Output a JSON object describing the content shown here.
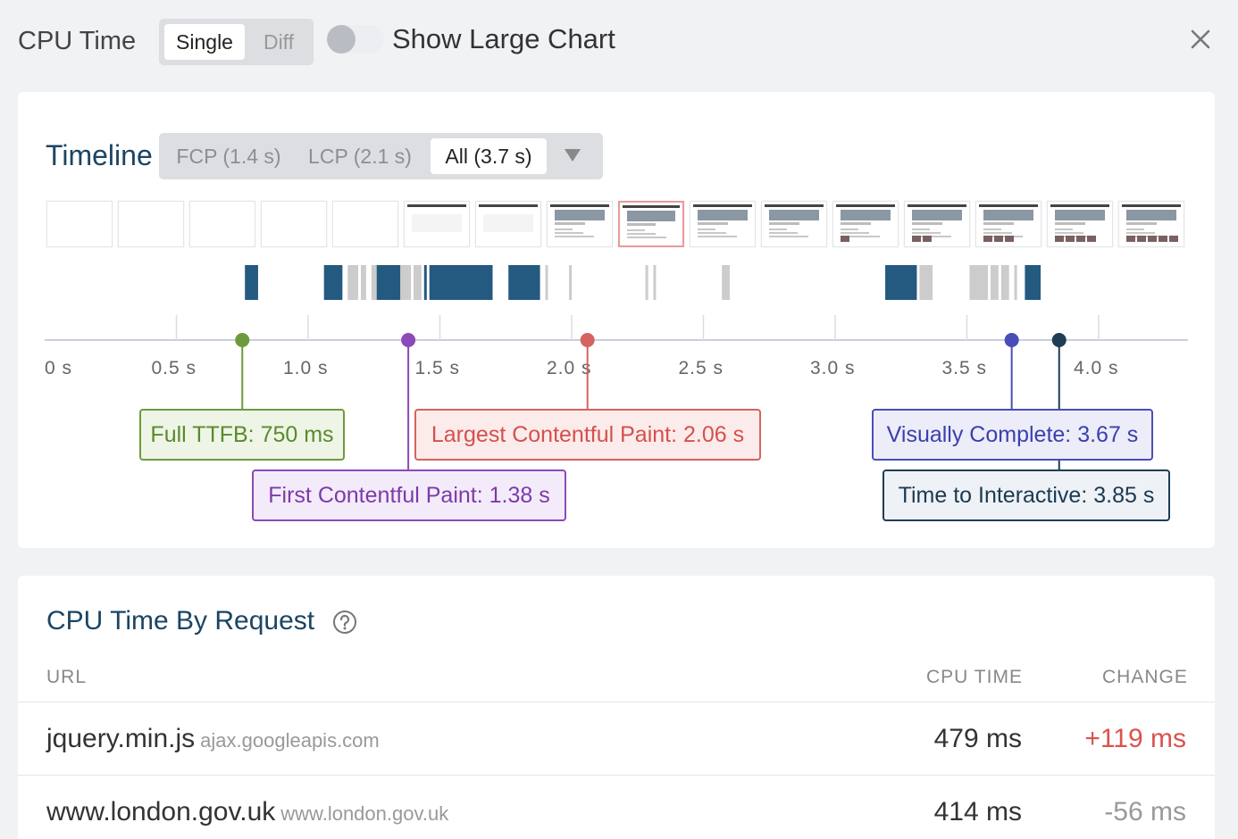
{
  "header": {
    "title": "CPU Time",
    "mode_single": "Single",
    "mode_diff": "Diff",
    "toggle_label": "Show Large Chart",
    "toggle_on": false
  },
  "timeline": {
    "title": "Timeline",
    "ranges": [
      "FCP (1.4 s)",
      "LCP (2.1 s)",
      "All (3.7 s)"
    ],
    "selected_range": "All (3.7 s)",
    "axis_ticks": [
      "0 s",
      "0.5 s",
      "1.0 s",
      "1.5 s",
      "2.0 s",
      "2.5 s",
      "3.0 s",
      "3.5 s",
      "4.0 s"
    ],
    "axis_max_seconds": 4.33,
    "filmstrip_frame_count": 16,
    "filmstrip_selected_index": 8,
    "markers": [
      {
        "key": "ttfb",
        "label": "Full TTFB: 750 ms",
        "time_s": 0.75,
        "color": "#6e9a3e"
      },
      {
        "key": "fcp",
        "label": "First Contentful Paint: 1.38 s",
        "time_s": 1.38,
        "color": "#8b4ab8"
      },
      {
        "key": "lcp",
        "label": "Largest Contentful Paint: 2.06 s",
        "time_s": 2.06,
        "color": "#d56360"
      },
      {
        "key": "vc",
        "label": "Visually Complete: 3.67 s",
        "time_s": 3.67,
        "color": "#4a4db8"
      },
      {
        "key": "tti",
        "label": "Time to Interactive: 3.85 s",
        "time_s": 3.85,
        "color": "#1f3d55"
      }
    ],
    "cpu_activity": {
      "colors": {
        "busy": "#245a80",
        "light": "#cccccc"
      },
      "segments": [
        {
          "start_s": 0.76,
          "end_s": 0.81,
          "type": "busy"
        },
        {
          "start_s": 1.06,
          "end_s": 1.13,
          "type": "busy"
        },
        {
          "start_s": 1.15,
          "end_s": 1.19,
          "type": "light"
        },
        {
          "start_s": 1.2,
          "end_s": 1.22,
          "type": "light"
        },
        {
          "start_s": 1.24,
          "end_s": 1.26,
          "type": "light"
        },
        {
          "start_s": 1.26,
          "end_s": 1.35,
          "type": "busy"
        },
        {
          "start_s": 1.35,
          "end_s": 1.38,
          "type": "light"
        },
        {
          "start_s": 1.38,
          "end_s": 1.39,
          "type": "light"
        },
        {
          "start_s": 1.4,
          "end_s": 1.43,
          "type": "light"
        },
        {
          "start_s": 1.44,
          "end_s": 1.45,
          "type": "busy"
        },
        {
          "start_s": 1.46,
          "end_s": 1.7,
          "type": "busy"
        },
        {
          "start_s": 1.76,
          "end_s": 1.88,
          "type": "busy"
        },
        {
          "start_s": 1.9,
          "end_s": 1.91,
          "type": "light"
        },
        {
          "start_s": 1.99,
          "end_s": 2.0,
          "type": "light"
        },
        {
          "start_s": 2.28,
          "end_s": 2.29,
          "type": "light"
        },
        {
          "start_s": 2.31,
          "end_s": 2.32,
          "type": "light"
        },
        {
          "start_s": 2.57,
          "end_s": 2.6,
          "type": "light"
        },
        {
          "start_s": 3.19,
          "end_s": 3.31,
          "type": "busy"
        },
        {
          "start_s": 3.32,
          "end_s": 3.37,
          "type": "light"
        },
        {
          "start_s": 3.51,
          "end_s": 3.58,
          "type": "light"
        },
        {
          "start_s": 3.59,
          "end_s": 3.62,
          "type": "light"
        },
        {
          "start_s": 3.63,
          "end_s": 3.66,
          "type": "light"
        },
        {
          "start_s": 3.68,
          "end_s": 3.69,
          "type": "light"
        },
        {
          "start_s": 3.72,
          "end_s": 3.78,
          "type": "busy"
        }
      ]
    }
  },
  "table": {
    "title": "CPU Time By Request",
    "columns": {
      "url": "URL",
      "cpu": "CPU TIME",
      "change": "CHANGE"
    },
    "rows": [
      {
        "url": "jquery.min.js",
        "host": "ajax.googleapis.com",
        "cpu": "479 ms",
        "change": "+119 ms",
        "change_dir": "pos"
      },
      {
        "url": "www.london.gov.uk",
        "host": "www.london.gov.uk",
        "cpu": "414 ms",
        "change": "-56 ms",
        "change_dir": "neg"
      }
    ]
  }
}
